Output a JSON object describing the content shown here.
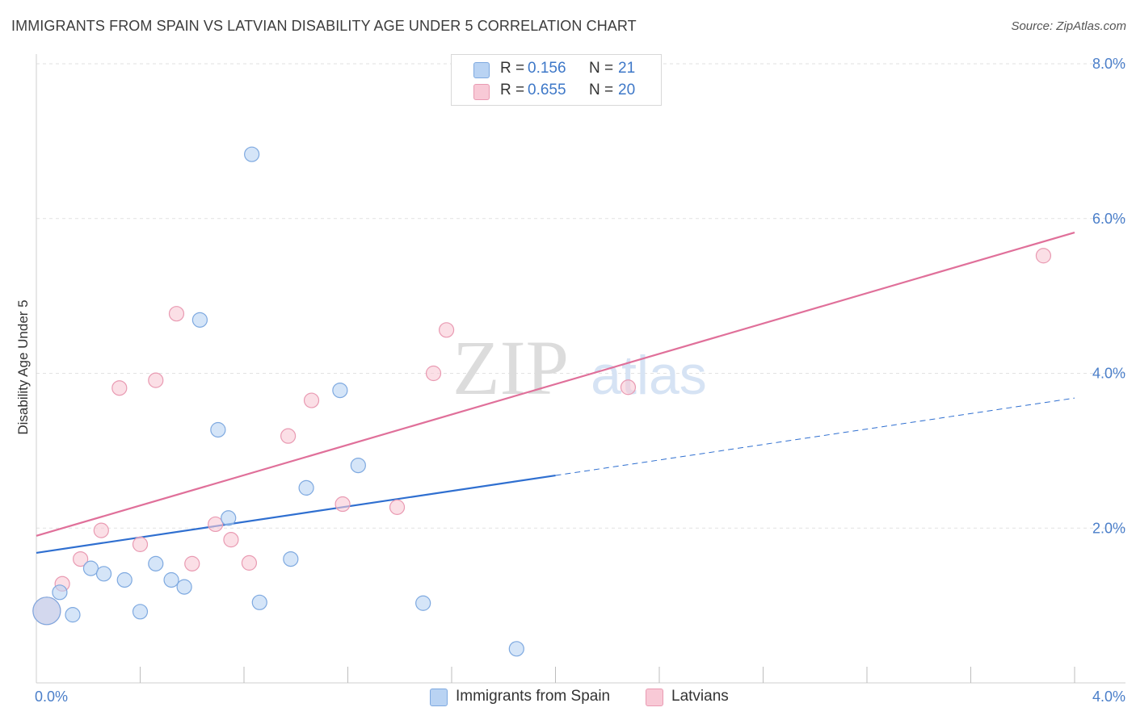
{
  "header": {
    "title": "IMMIGRANTS FROM SPAIN VS LATVIAN DISABILITY AGE UNDER 5 CORRELATION CHART",
    "source": "Source: ZipAtlas.com"
  },
  "legend_top": {
    "rows": [
      {
        "r_label": "R =",
        "r_value": "0.156",
        "n_label": "N =",
        "n_value": "21"
      },
      {
        "r_label": "R =",
        "r_value": "0.655",
        "n_label": "N =",
        "n_value": "20"
      }
    ]
  },
  "legend_bottom": {
    "items": [
      "Immigrants from Spain",
      "Latvians"
    ]
  },
  "watermark": {
    "zip": "ZIP",
    "atlas": "atlas"
  },
  "colors": {
    "blue_fill": "#b9d3f3",
    "blue_stroke": "#7ea9e0",
    "blue_line": "#2f6fd0",
    "pink_fill": "#f8c9d6",
    "pink_stroke": "#e99ab2",
    "pink_line": "#e0709a",
    "tick_text": "#4a7ec9"
  },
  "chart_data": {
    "type": "scatter",
    "title": "IMMIGRANTS FROM SPAIN VS LATVIAN DISABILITY AGE UNDER 5 CORRELATION CHART",
    "xlabel": "",
    "ylabel": "Disability Age Under 5",
    "xlim": [
      0.0,
      4.0
    ],
    "ylim": [
      0.0,
      8.0
    ],
    "x_tick_labels": [
      "0.0%",
      "4.0%"
    ],
    "y_tick_labels": [
      "2.0%",
      "4.0%",
      "6.0%",
      "8.0%"
    ],
    "y_ticks": [
      2.0,
      4.0,
      6.0,
      8.0
    ],
    "grid": true,
    "legend_position": "top-center",
    "series": [
      {
        "name": "Immigrants from Spain",
        "r": 0.156,
        "n": 21,
        "points": [
          {
            "x": 0.04,
            "y": 0.93,
            "large": true
          },
          {
            "x": 0.09,
            "y": 1.17
          },
          {
            "x": 0.14,
            "y": 0.88
          },
          {
            "x": 0.21,
            "y": 1.48
          },
          {
            "x": 0.26,
            "y": 1.41
          },
          {
            "x": 0.34,
            "y": 1.33
          },
          {
            "x": 0.4,
            "y": 0.92
          },
          {
            "x": 0.46,
            "y": 1.54
          },
          {
            "x": 0.52,
            "y": 1.33
          },
          {
            "x": 0.57,
            "y": 1.24
          },
          {
            "x": 0.63,
            "y": 4.69
          },
          {
            "x": 0.7,
            "y": 3.27
          },
          {
            "x": 0.74,
            "y": 2.13
          },
          {
            "x": 0.83,
            "y": 6.83
          },
          {
            "x": 0.86,
            "y": 1.04
          },
          {
            "x": 0.98,
            "y": 1.6
          },
          {
            "x": 1.04,
            "y": 2.52
          },
          {
            "x": 1.17,
            "y": 3.78
          },
          {
            "x": 1.24,
            "y": 2.81
          },
          {
            "x": 1.49,
            "y": 1.03
          },
          {
            "x": 1.85,
            "y": 0.44
          }
        ],
        "trend": {
          "x0": 0.0,
          "y0": 1.68,
          "x1": 2.0,
          "y1": 2.68,
          "dashed_to_x": 4.0,
          "dashed_to_y": 3.68
        }
      },
      {
        "name": "Latvians",
        "r": 0.655,
        "n": 20,
        "points": [
          {
            "x": 0.04,
            "y": 0.93,
            "large": true
          },
          {
            "x": 0.1,
            "y": 1.28
          },
          {
            "x": 0.17,
            "y": 1.6
          },
          {
            "x": 0.25,
            "y": 1.97
          },
          {
            "x": 0.32,
            "y": 3.81
          },
          {
            "x": 0.4,
            "y": 1.79
          },
          {
            "x": 0.46,
            "y": 3.91
          },
          {
            "x": 0.54,
            "y": 4.77
          },
          {
            "x": 0.6,
            "y": 1.54
          },
          {
            "x": 0.69,
            "y": 2.05
          },
          {
            "x": 0.75,
            "y": 1.85
          },
          {
            "x": 0.82,
            "y": 1.55
          },
          {
            "x": 0.97,
            "y": 3.19
          },
          {
            "x": 1.06,
            "y": 3.65
          },
          {
            "x": 1.18,
            "y": 2.31
          },
          {
            "x": 1.39,
            "y": 2.27
          },
          {
            "x": 1.53,
            "y": 4.0
          },
          {
            "x": 1.58,
            "y": 4.56
          },
          {
            "x": 2.28,
            "y": 3.82
          },
          {
            "x": 3.88,
            "y": 5.52
          }
        ],
        "trend": {
          "x0": 0.0,
          "y0": 1.9,
          "x1": 4.0,
          "y1": 5.82
        }
      }
    ]
  }
}
